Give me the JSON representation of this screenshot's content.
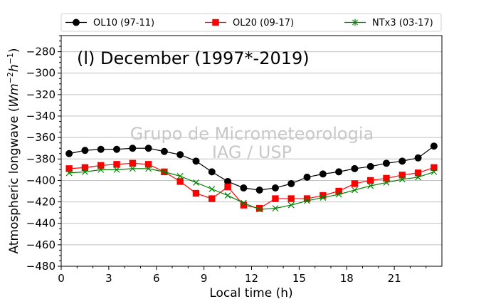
{
  "chart_data": {
    "type": "line",
    "title": "(l) December (1997*-2019)",
    "xlabel": "Local time (h)",
    "ylabel_parts": [
      "Atmospheric longwave (",
      "Wm",
      "−2",
      "h",
      "−1",
      ")"
    ],
    "xlim": [
      0,
      24
    ],
    "ylim": [
      -480,
      -265
    ],
    "xticks": [
      0,
      3,
      6,
      9,
      12,
      15,
      18,
      21
    ],
    "yticks": [
      -480,
      -460,
      -440,
      -420,
      -400,
      -380,
      -360,
      -340,
      -320,
      -300,
      -280
    ],
    "grid": "horizontal",
    "legend_position": "top",
    "watermark": [
      "Grupo de Micrometeorologia",
      "IAG / USP"
    ],
    "x": [
      0.5,
      1.5,
      2.5,
      3.5,
      4.5,
      5.5,
      6.5,
      7.5,
      8.5,
      9.5,
      10.5,
      11.5,
      12.5,
      13.5,
      14.5,
      15.5,
      16.5,
      17.5,
      18.5,
      19.5,
      20.5,
      21.5,
      22.5,
      23.5
    ],
    "series": [
      {
        "name": "OL10 (97-11)",
        "color": "#000000",
        "marker": "circle",
        "values": [
          -375,
          -372,
          -371,
          -371,
          -370,
          -370,
          -373,
          -376,
          -382,
          -392,
          -401,
          -407,
          -409,
          -407,
          -403,
          -397,
          -394,
          -392,
          -389,
          -387,
          -384,
          -382,
          -379,
          -368
        ]
      },
      {
        "name": "OL20 (09-17)",
        "color": "#ff0000",
        "marker": "square",
        "values": [
          -389,
          -388,
          -386,
          -385,
          -384,
          -385,
          -392,
          -401,
          -412,
          -417,
          -406,
          -423,
          -426,
          -417,
          -417,
          -417,
          -414,
          -410,
          -403,
          -400,
          -398,
          -395,
          -393,
          -388
        ]
      },
      {
        "name": "NTx3 (03-17)",
        "color": "#008000",
        "marker": "x",
        "values": [
          -393,
          -392,
          -390,
          -390,
          -389,
          -389,
          -392,
          -396,
          -402,
          -408,
          -414,
          -421,
          -427,
          -426,
          -423,
          -419,
          -416,
          -413,
          -409,
          -405,
          -402,
          -399,
          -397,
          -392
        ]
      }
    ]
  }
}
